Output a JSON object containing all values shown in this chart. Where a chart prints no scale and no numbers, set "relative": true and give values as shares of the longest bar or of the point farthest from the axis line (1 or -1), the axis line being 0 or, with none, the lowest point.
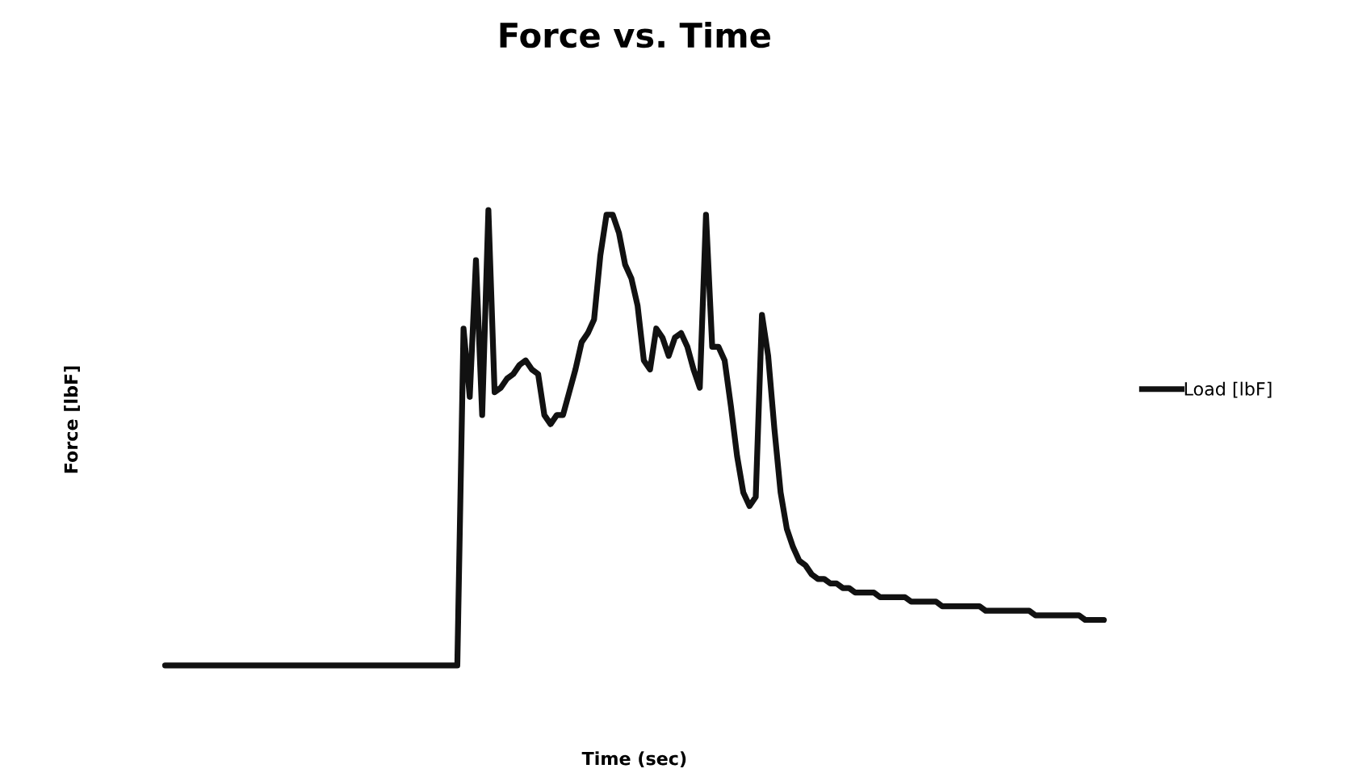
{
  "chart_data": {
    "type": "line",
    "title": "Force vs. Time",
    "xlabel": "Time (sec)",
    "ylabel": "Force [lbF]",
    "relative": true,
    "legend": "right",
    "marker": "none",
    "line_style": "solid",
    "categories": [
      null,
      null,
      null,
      null,
      null,
      null,
      null,
      null,
      null,
      null,
      null,
      null,
      null,
      null,
      null,
      null,
      null,
      null,
      null,
      null,
      null,
      null,
      null,
      null,
      null,
      null,
      null,
      null,
      null,
      null,
      null,
      null,
      null,
      null,
      null,
      null,
      null,
      null,
      null,
      null,
      null,
      null,
      null,
      null,
      null,
      null,
      null,
      null,
      null,
      null,
      null,
      null,
      null,
      null,
      null,
      null,
      null,
      null,
      null,
      null,
      null,
      null,
      null,
      null,
      null,
      null,
      null,
      null,
      null,
      null,
      null,
      null,
      null,
      null,
      null,
      null,
      null,
      null,
      null,
      null,
      null,
      null,
      null,
      null,
      null,
      null,
      null,
      null,
      null,
      null,
      null,
      null,
      null,
      null,
      null,
      null,
      null,
      null,
      null,
      null,
      null,
      null,
      null,
      null,
      null,
      null,
      null,
      null,
      null,
      null,
      null,
      null,
      null,
      null,
      null,
      null,
      null,
      null,
      null,
      null,
      null,
      null,
      null,
      null,
      null,
      null,
      null,
      null,
      null,
      null,
      null,
      null,
      null,
      null,
      null,
      null,
      null,
      null,
      null,
      null,
      null,
      null,
      null,
      null,
      null,
      null,
      null,
      null,
      null,
      null,
      null,
      null
    ],
    "series": [
      {
        "name": "Load [lbF]",
        "color": "#111111",
        "values": [
          0,
          0,
          0,
          0,
          0,
          0,
          0,
          0,
          0,
          0,
          0,
          0,
          0,
          0,
          0,
          0,
          0,
          0,
          0,
          0,
          0,
          0,
          0,
          0,
          0,
          0,
          0,
          0,
          0,
          0,
          0,
          0,
          0,
          0,
          0,
          0,
          0,
          0,
          0,
          0,
          0,
          0,
          0,
          0,
          0,
          0,
          0,
          0,
          0.74,
          0.59,
          0.89,
          0.55,
          1.0,
          0.6,
          0.61,
          0.63,
          0.64,
          0.66,
          0.67,
          0.65,
          0.64,
          0.55,
          0.53,
          0.55,
          0.55,
          0.6,
          0.65,
          0.71,
          0.73,
          0.76,
          0.9,
          0.99,
          0.99,
          0.95,
          0.88,
          0.85,
          0.79,
          0.67,
          0.65,
          0.74,
          0.72,
          0.68,
          0.72,
          0.73,
          0.7,
          0.65,
          0.61,
          0.99,
          0.7,
          0.7,
          0.67,
          0.57,
          0.46,
          0.38,
          0.35,
          0.37,
          0.77,
          0.68,
          0.52,
          0.38,
          0.3,
          0.26,
          0.23,
          0.22,
          0.2,
          0.19,
          0.19,
          0.18,
          0.18,
          0.17,
          0.17,
          0.16,
          0.16,
          0.16,
          0.16,
          0.15,
          0.15,
          0.15,
          0.15,
          0.15,
          0.14,
          0.14,
          0.14,
          0.14,
          0.14,
          0.13,
          0.13,
          0.13,
          0.13,
          0.13,
          0.13,
          0.13,
          0.12,
          0.12,
          0.12,
          0.12,
          0.12,
          0.12,
          0.12,
          0.12,
          0.11,
          0.11,
          0.11,
          0.11,
          0.11,
          0.11,
          0.11,
          0.11,
          0.1,
          0.1,
          0.1,
          0.1
        ]
      }
    ]
  }
}
